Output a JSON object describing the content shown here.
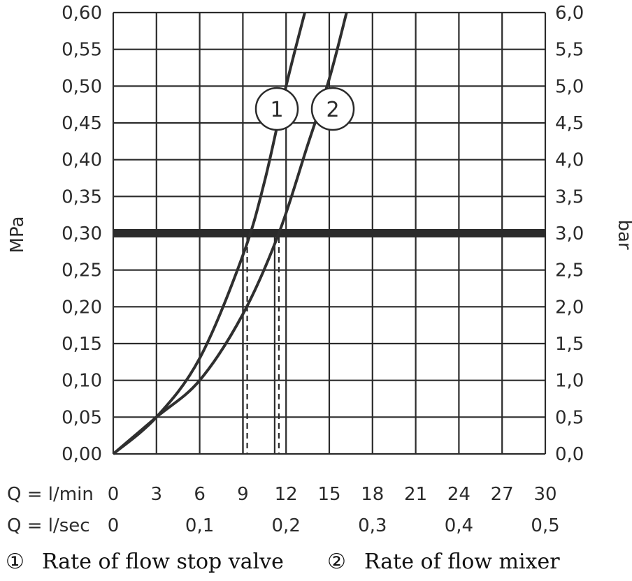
{
  "chart_data": {
    "type": "line",
    "x_axis": {
      "row1_label": "Q = l/min",
      "row1_ticks": [
        "0",
        "3",
        "6",
        "9",
        "12",
        "15",
        "18",
        "21",
        "24",
        "27",
        "30"
      ],
      "row1_values": [
        0,
        3,
        6,
        9,
        12,
        15,
        18,
        21,
        24,
        27,
        30
      ],
      "row2_label": "Q = l/sec",
      "row2_ticks": [
        "0",
        "0,1",
        "0,2",
        "0,3",
        "0,4",
        "0,5"
      ],
      "row2_values_lmin": [
        0,
        6,
        12,
        18,
        24,
        30
      ],
      "xlim": [
        0,
        30
      ]
    },
    "y_left": {
      "label": "MPa",
      "ticks": [
        "0,00",
        "0,05",
        "0,10",
        "0,15",
        "0,20",
        "0,25",
        "0,30",
        "0,35",
        "0,40",
        "0,45",
        "0,50",
        "0,55",
        "0,60"
      ],
      "values": [
        0,
        0.05,
        0.1,
        0.15,
        0.2,
        0.25,
        0.3,
        0.35,
        0.4,
        0.45,
        0.5,
        0.55,
        0.6
      ],
      "ylim": [
        0,
        0.6
      ]
    },
    "y_right": {
      "label": "bar",
      "ticks": [
        "0,0",
        "0,5",
        "1,0",
        "1,5",
        "2,0",
        "2,5",
        "3,0",
        "3,5",
        "4,0",
        "4,5",
        "5,0",
        "5,5",
        "6,0"
      ]
    },
    "grid": true,
    "reference_line": {
      "y": 0.3
    },
    "drop_lines_x": [
      9.3,
      11.5
    ],
    "series": [
      {
        "marker": "1",
        "x": [
          0,
          3,
          6,
          9,
          10.5,
          12,
          13.3
        ],
        "y": [
          0,
          0.05,
          0.13,
          0.27,
          0.37,
          0.5,
          0.6
        ]
      },
      {
        "marker": "2",
        "x": [
          0,
          3,
          6,
          9,
          11.5,
          13.5,
          15,
          16.2
        ],
        "y": [
          0,
          0.05,
          0.1,
          0.19,
          0.3,
          0.42,
          0.51,
          0.6
        ]
      }
    ],
    "legend": {
      "item1_symbol": "①",
      "item1_text": "Rate of flow stop valve",
      "item2_symbol": "②",
      "item2_text": "Rate of flow mixer"
    }
  }
}
